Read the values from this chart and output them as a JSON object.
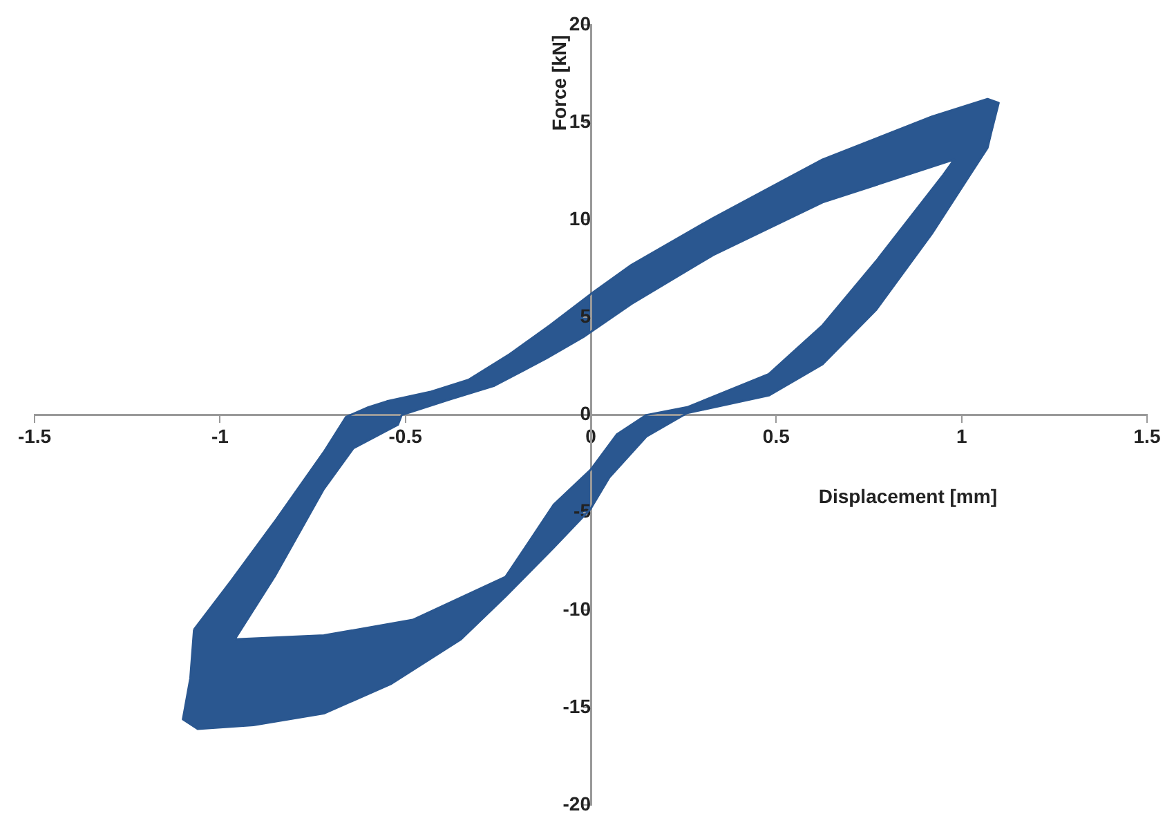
{
  "chart_data": {
    "type": "area",
    "xlabel": "Displacement [mm]",
    "ylabel": "Force [kN]",
    "xlim": [
      -1.5,
      1.5
    ],
    "xticks": [
      -1.5,
      -1,
      -0.5,
      0,
      0.5,
      1,
      1.5
    ],
    "ylim": [
      -20,
      20
    ],
    "yticks": [
      -20,
      -15,
      -10,
      -5,
      0,
      5,
      10,
      15,
      20
    ],
    "grid": false,
    "legend": false,
    "marker": "none",
    "line_style": "solid",
    "series": [
      {
        "color": "#2a5790",
        "x": [
          -1.07,
          -0.97,
          -0.85,
          -0.72,
          -0.66,
          -0.6,
          -0.55,
          -0.43,
          -0.33,
          -0.22,
          -0.11,
          0,
          0.11,
          0.33,
          0.625,
          0.92,
          1.07,
          1.1,
          1.08,
          1.07,
          0.92,
          0.77,
          0.625,
          0.48,
          0.26,
          0.15,
          0.05,
          0,
          -0.1,
          -0.23,
          -0.35,
          -0.54,
          -0.72,
          -0.91,
          -1.06,
          -1.1,
          -1.08,
          -1.07
        ],
        "values": [
          -11,
          -8.5,
          -5.4,
          -1.9,
          -0.1,
          0.4,
          0.7,
          1.2,
          1.8,
          3.1,
          4.6,
          6.2,
          7.7,
          10.1,
          13.1,
          15.3,
          16.2,
          16,
          14.5,
          13.7,
          9.3,
          5.4,
          2.6,
          1.0,
          0.1,
          -1.1,
          -3.2,
          -4.8,
          -6.8,
          -9.3,
          -11.5,
          -13.8,
          -15.3,
          -15.9,
          -16.1,
          -15.6,
          -13.5,
          -11
        ]
      },
      {
        "color": "#2a5790",
        "x": [
          -0.96,
          -0.85,
          -0.72,
          -0.64,
          -0.52,
          -0.51,
          -0.38,
          -0.26,
          -0.12,
          -0.02,
          0.11,
          0.33,
          0.625,
          0.98,
          0.95,
          0.77,
          0.625,
          0.48,
          0.26,
          0.15,
          0.07,
          0,
          -0.1,
          -0.23,
          -0.48,
          -0.72,
          -0.96
        ],
        "values": [
          -11.5,
          -8.2,
          -3.8,
          -1.7,
          -0.5,
          0,
          0.8,
          1.5,
          2.9,
          4.0,
          5.7,
          8.2,
          10.9,
          13.1,
          12.3,
          7.9,
          4.6,
          2.1,
          0.4,
          0,
          -1.0,
          -2.8,
          -4.6,
          -8.3,
          -10.5,
          -11.3,
          -11.5
        ]
      }
    ]
  }
}
